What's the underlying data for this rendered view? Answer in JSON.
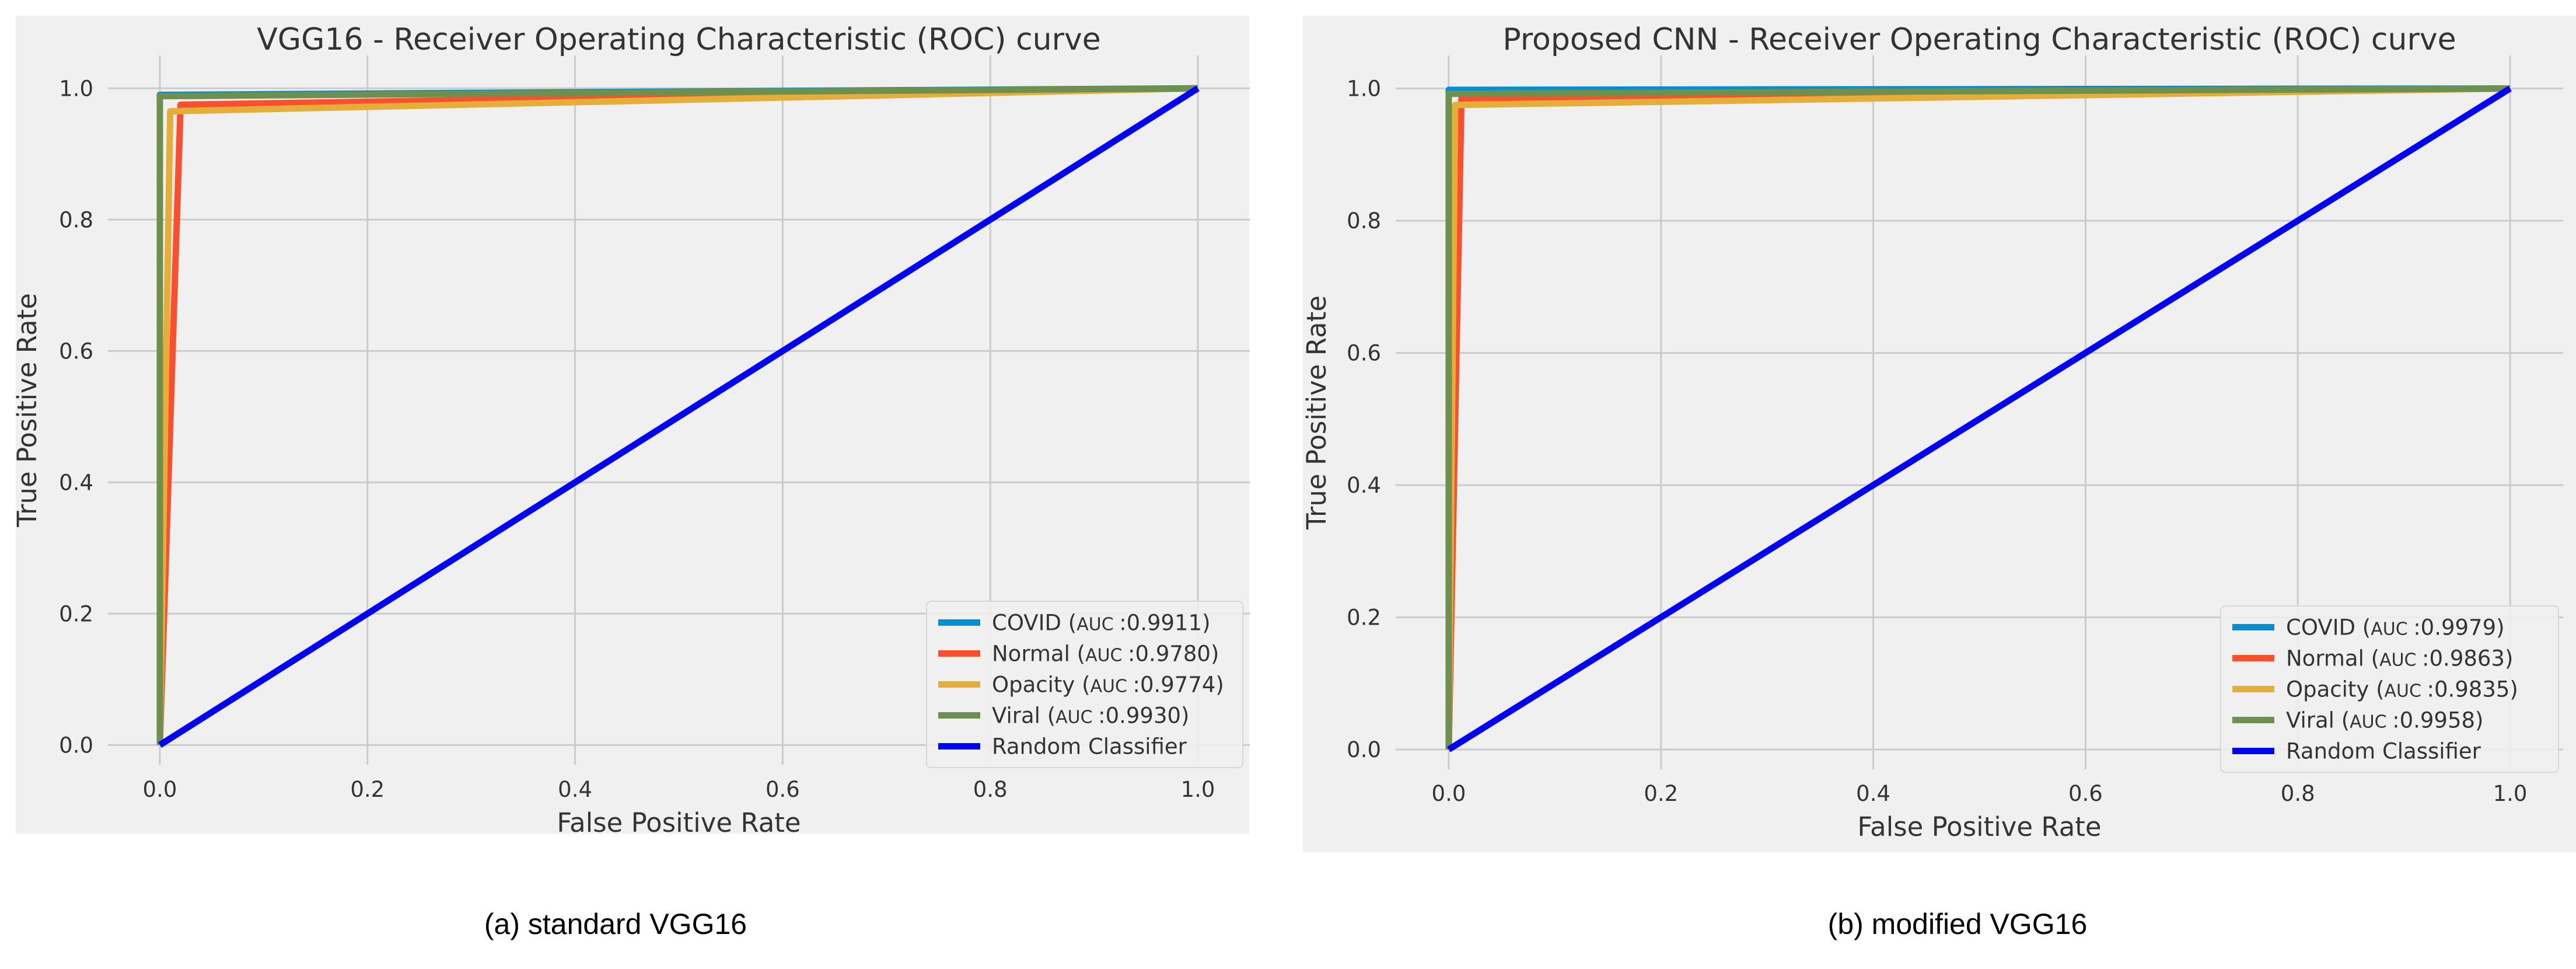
{
  "chart_data": [
    {
      "type": "line",
      "title": "VGG16 - Receiver Operating Characteristic (ROC) curve",
      "xlabel": "False Positive Rate",
      "ylabel": "True Positive Rate",
      "xlim": [
        -0.05,
        1.05
      ],
      "ylim": [
        -0.03,
        1.05
      ],
      "xticks": [
        0.0,
        0.2,
        0.4,
        0.6,
        0.8,
        1.0
      ],
      "yticks": [
        0.0,
        0.2,
        0.4,
        0.6,
        0.8,
        1.0
      ],
      "tick_labels_x": [
        "0.0",
        "0.2",
        "0.4",
        "0.6",
        "0.8",
        "1.0"
      ],
      "tick_labels_y": [
        "0.0",
        "0.2",
        "0.4",
        "0.6",
        "0.8",
        "1.0"
      ],
      "grid": true,
      "legend_position": "lower-right",
      "caption": "(a) standard VGG16",
      "series": [
        {
          "name": "COVID",
          "auc_label": "AUC",
          "auc": ":0.9911",
          "color": "#008fd5",
          "x": [
            0,
            0.0,
            1.0
          ],
          "y": [
            0,
            0.99,
            1.0
          ]
        },
        {
          "name": "Normal",
          "auc_label": "AUC",
          "auc": ":0.9780",
          "color": "#fc4f30",
          "x": [
            0,
            0.02,
            1.0
          ],
          "y": [
            0,
            0.975,
            1.0
          ]
        },
        {
          "name": "Opacity",
          "auc_label": "AUC",
          "auc": ":0.9774",
          "color": "#e5ae38",
          "x": [
            0,
            0.01,
            1.0
          ],
          "y": [
            0,
            0.965,
            1.0
          ]
        },
        {
          "name": "Viral",
          "auc_label": "AUC",
          "auc": ":0.9930",
          "color": "#6d904f",
          "x": [
            0,
            0.0,
            1.0
          ],
          "y": [
            0,
            0.988,
            1.0
          ]
        },
        {
          "name": "Random Classifier",
          "color": "#0000ff",
          "x": [
            0,
            1
          ],
          "y": [
            0,
            1
          ]
        }
      ]
    },
    {
      "type": "line",
      "title": "Proposed CNN - Receiver Operating Characteristic (ROC) curve",
      "xlabel": "False Positive Rate",
      "ylabel": "True Positive Rate",
      "xlim": [
        -0.05,
        1.05
      ],
      "ylim": [
        -0.03,
        1.05
      ],
      "xticks": [
        0.0,
        0.2,
        0.4,
        0.6,
        0.8,
        1.0
      ],
      "yticks": [
        0.0,
        0.2,
        0.4,
        0.6,
        0.8,
        1.0
      ],
      "tick_labels_x": [
        "0.0",
        "0.2",
        "0.4",
        "0.6",
        "0.8",
        "1.0"
      ],
      "tick_labels_y": [
        "0.0",
        "0.2",
        "0.4",
        "0.6",
        "0.8",
        "1.0"
      ],
      "grid": true,
      "legend_position": "lower-right",
      "caption": "(b) modified VGG16",
      "series": [
        {
          "name": "COVID",
          "auc_label": "AUC",
          "auc": ":0.9979",
          "color": "#008fd5",
          "x": [
            0,
            0.0,
            1.0
          ],
          "y": [
            0,
            0.998,
            1.0
          ]
        },
        {
          "name": "Normal",
          "auc_label": "AUC",
          "auc": ":0.9863",
          "color": "#fc4f30",
          "x": [
            0,
            0.012,
            1.0
          ],
          "y": [
            0,
            0.985,
            1.0
          ]
        },
        {
          "name": "Opacity",
          "auc_label": "AUC",
          "auc": ":0.9835",
          "color": "#e5ae38",
          "x": [
            0,
            0.006,
            1.0
          ],
          "y": [
            0,
            0.975,
            1.0
          ]
        },
        {
          "name": "Viral",
          "auc_label": "AUC",
          "auc": ":0.9958",
          "color": "#6d904f",
          "x": [
            0,
            0.0,
            1.0
          ],
          "y": [
            0,
            0.992,
            1.0
          ]
        },
        {
          "name": "Random Classifier",
          "color": "#0000ff",
          "x": [
            0,
            1
          ],
          "y": [
            0,
            1
          ]
        }
      ]
    }
  ]
}
